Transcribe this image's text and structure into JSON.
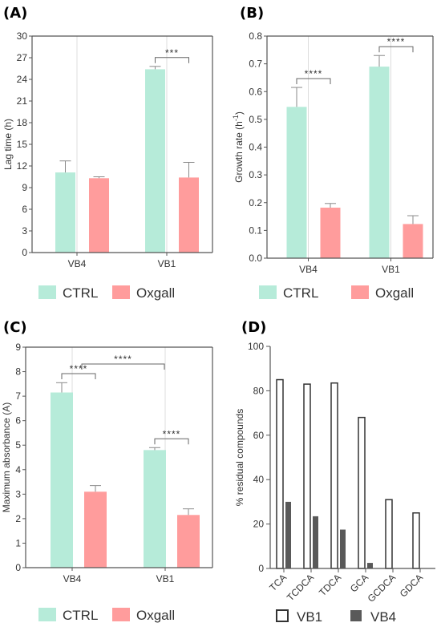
{
  "colors": {
    "ctrl_fill": "#b6ebd9",
    "oxgall_fill": "#ff9c9c",
    "vb1_fill": "#ffffff",
    "vb4_fill": "#595959",
    "axis": "#555555",
    "grid": "#dcdcdc"
  },
  "chart_data": [
    {
      "id": "A",
      "panel_label": "(A)",
      "type": "bar",
      "categories": [
        "VB4",
        "VB1"
      ],
      "series": [
        {
          "name": "CTRL",
          "values": [
            11.1,
            25.4
          ],
          "errors": [
            1.6,
            0.4
          ]
        },
        {
          "name": "Oxgall",
          "values": [
            10.3,
            10.4
          ],
          "errors": [
            0.2,
            2.1
          ]
        }
      ],
      "ylabel": "Lag time (h)",
      "ylim": [
        0,
        30
      ],
      "yticks": [
        "0",
        "3",
        "6",
        "9",
        "12",
        "15",
        "18",
        "21",
        "24",
        "27",
        "30"
      ],
      "significance": [
        {
          "category": 1,
          "label": "***"
        }
      ],
      "grid": "vertical",
      "legend": [
        "CTRL",
        "Oxgall"
      ]
    },
    {
      "id": "B",
      "panel_label": "(B)",
      "type": "bar",
      "categories": [
        "VB4",
        "VB1"
      ],
      "series": [
        {
          "name": "CTRL",
          "values": [
            0.545,
            0.69
          ],
          "errors": [
            0.07,
            0.04
          ]
        },
        {
          "name": "Oxgall",
          "values": [
            0.182,
            0.123
          ],
          "errors": [
            0.015,
            0.03
          ]
        }
      ],
      "ylabel_main": "Growth rate (h",
      "ylabel_sup": "-1",
      "ylabel_end": ")",
      "ylim": [
        0,
        0.8
      ],
      "yticks": [
        "0.0",
        "0.1",
        "0.2",
        "0.3",
        "0.4",
        "0.5",
        "0.6",
        "0.7",
        "0.8"
      ],
      "significance": [
        {
          "category": 0,
          "label": "****"
        },
        {
          "category": 1,
          "label": "****"
        }
      ],
      "grid": "vertical",
      "legend": [
        "CTRL",
        "Oxgall"
      ]
    },
    {
      "id": "C",
      "panel_label": "(C)",
      "type": "bar",
      "categories": [
        "VB4",
        "VB1"
      ],
      "series": [
        {
          "name": "CTRL",
          "values": [
            7.15,
            4.8
          ],
          "errors": [
            0.4,
            0.1
          ]
        },
        {
          "name": "Oxgall",
          "values": [
            3.1,
            2.15
          ],
          "errors": [
            0.25,
            0.25
          ]
        }
      ],
      "ylabel": "Maximum absorbance (A)",
      "ylim": [
        0,
        9
      ],
      "yticks": [
        "0",
        "1",
        "2",
        "3",
        "4",
        "5",
        "6",
        "7",
        "8",
        "9"
      ],
      "significance": [
        {
          "category": 0,
          "label": "****"
        },
        {
          "category": 1,
          "label": "****"
        },
        {
          "between_ctrl": true,
          "label": "****"
        }
      ],
      "grid": "vertical",
      "legend": [
        "CTRL",
        "Oxgall"
      ]
    },
    {
      "id": "D",
      "panel_label": "(D)",
      "type": "bar",
      "categories": [
        "TCA",
        "TCDCA",
        "TDCA",
        "GCA",
        "GCDCA",
        "GDCA"
      ],
      "series": [
        {
          "name": "VB1",
          "values": [
            85,
            83,
            83.5,
            68,
            31,
            25
          ]
        },
        {
          "name": "VB4",
          "values": [
            30,
            23.5,
            17.5,
            2.5,
            0,
            0
          ]
        }
      ],
      "ylabel": "% residual compounds",
      "ylim": [
        0,
        100
      ],
      "yticks": [
        "0",
        "20",
        "40",
        "60",
        "80",
        "100"
      ],
      "grid": "none",
      "legend": [
        "VB1",
        "VB4"
      ]
    }
  ]
}
